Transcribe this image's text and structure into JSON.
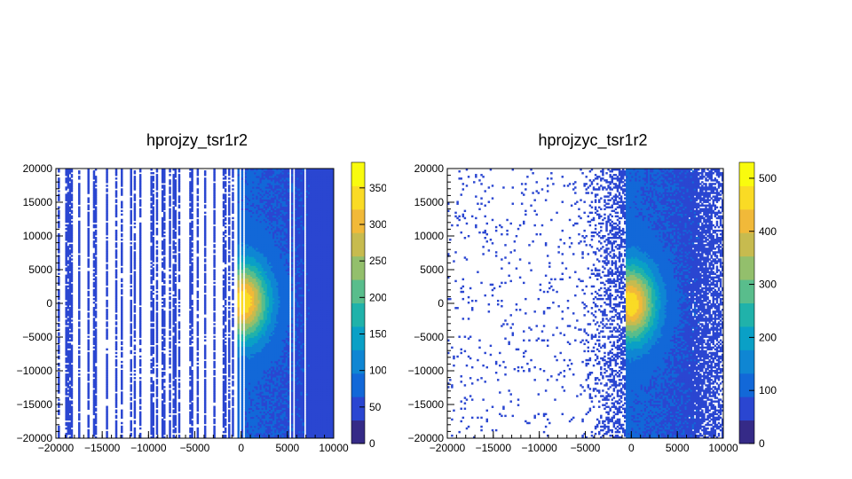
{
  "colors": {
    "background": "#ffffff",
    "axis": "#000000",
    "palette": [
      "#352a87",
      "#2a46d1",
      "#1268d8",
      "#0f86d3",
      "#0aa0c6",
      "#20b2aa",
      "#59bd8c",
      "#93bf6c",
      "#c7bb4f",
      "#f1b939",
      "#fadb25",
      "#f9fb0e"
    ]
  },
  "chart_data": [
    {
      "type": "heatmap",
      "title": "hprojzy_tsr1r2",
      "xlabel": "",
      "ylabel": "",
      "xlim": [
        -20000,
        10000
      ],
      "ylim": [
        -20000,
        20000
      ],
      "x_ticks": [
        -20000,
        -15000,
        -10000,
        -5000,
        0,
        5000,
        10000
      ],
      "y_ticks": [
        -20000,
        -15000,
        -10000,
        -5000,
        0,
        5000,
        10000,
        15000,
        20000
      ],
      "z_range": [
        0,
        385
      ],
      "z_ticks": [
        0,
        50,
        100,
        150,
        200,
        250,
        300,
        350
      ],
      "z_tick_labels": [
        "0",
        "50",
        "100",
        "150",
        "200",
        "250",
        "300",
        "350"
      ],
      "peak": {
        "x": 300,
        "y": 300,
        "z": 385
      },
      "dense_region_x": [
        -500,
        10000
      ],
      "sparse_region_x": [
        -20000,
        -1000
      ],
      "pattern": "vertical strips"
    },
    {
      "type": "heatmap",
      "title": "hprojzyc_tsr1r2",
      "xlabel": "",
      "ylabel": "",
      "xlim": [
        -20000,
        10000
      ],
      "ylim": [
        -20000,
        20000
      ],
      "x_ticks": [
        -20000,
        -15000,
        -10000,
        -5000,
        0,
        5000,
        10000
      ],
      "y_ticks": [
        -20000,
        -15000,
        -10000,
        -5000,
        0,
        5000,
        10000,
        15000,
        20000
      ],
      "z_range": [
        0,
        530
      ],
      "z_ticks": [
        0,
        100,
        200,
        300,
        400,
        500
      ],
      "z_tick_labels": [
        "0",
        "100",
        "200",
        "300",
        "400",
        "500"
      ],
      "peak": {
        "x": 0,
        "y": 0,
        "z": 530
      },
      "dense_region_x": [
        -500,
        10000
      ],
      "sparse_region_x": [
        -20000,
        -1000
      ],
      "pattern": "scattered"
    }
  ]
}
